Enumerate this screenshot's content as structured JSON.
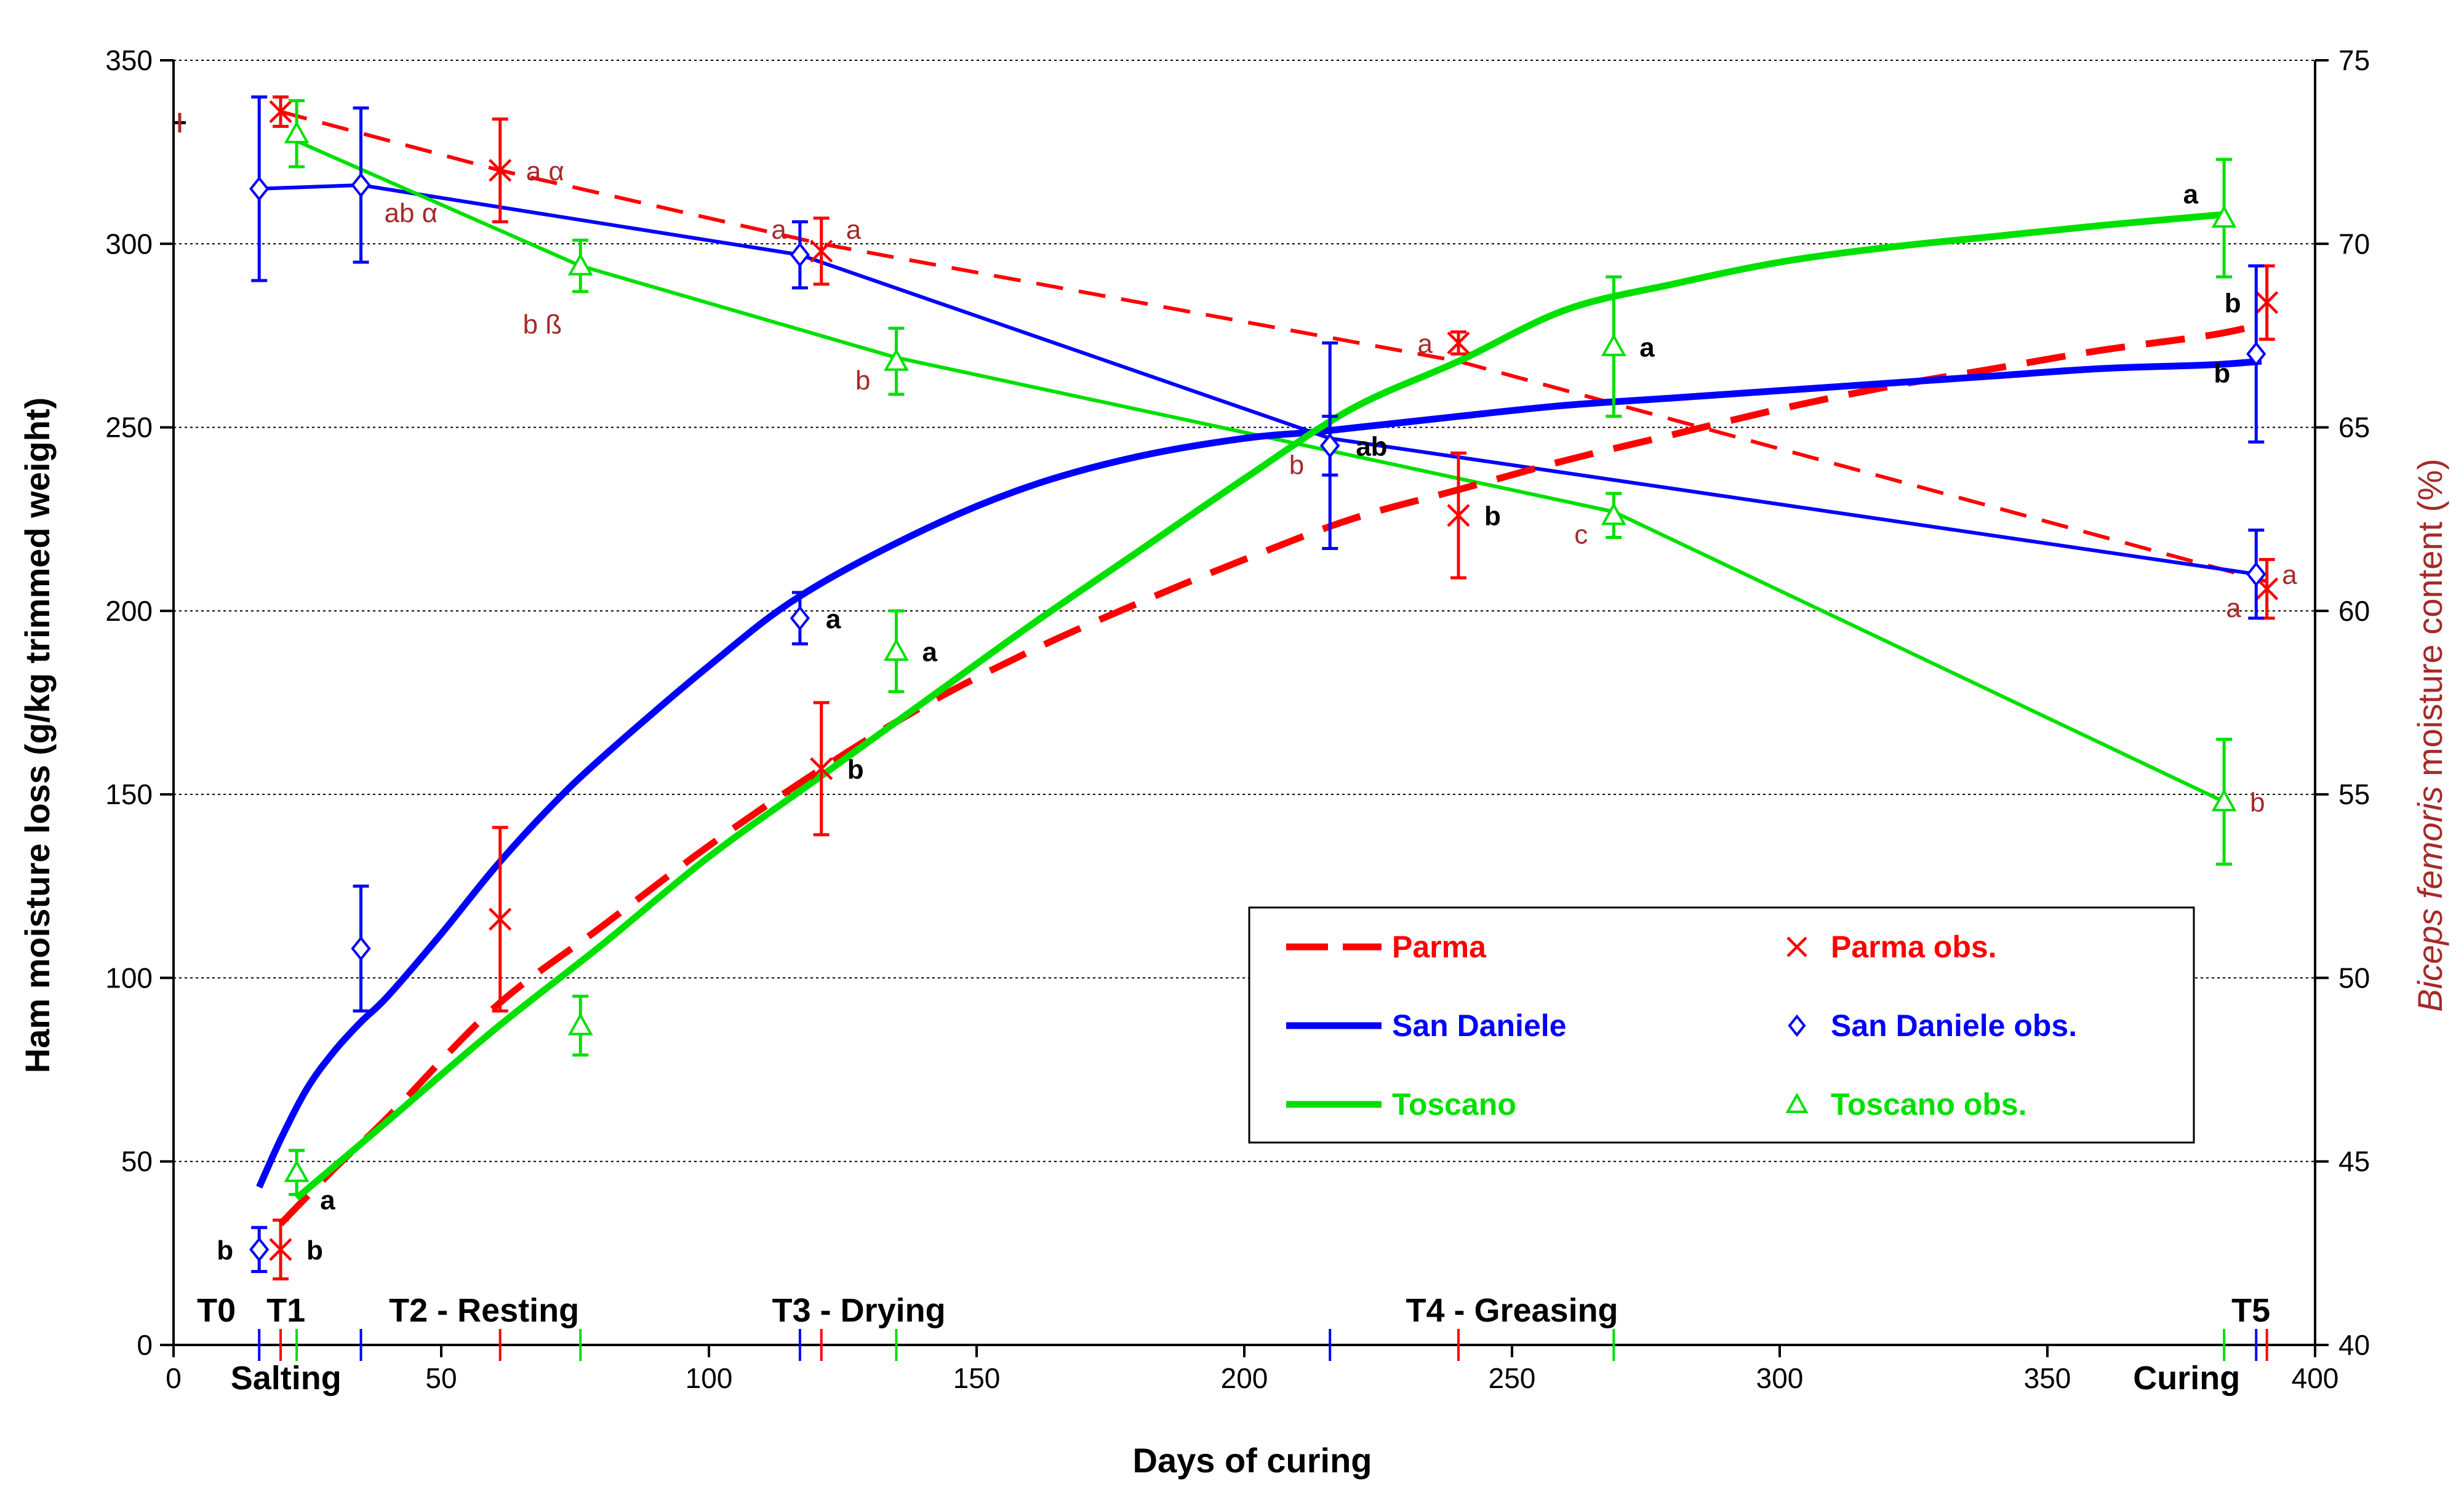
{
  "chart_data": {
    "type": "line",
    "title": "",
    "xlabel": "Days of curing",
    "ylabel": "Ham moisture loss (g/kg trimmed weight)",
    "ylabel_right_italic": "Biceps femoris",
    "ylabel_right_rest": " moisture content (%)",
    "xlim": [
      0,
      400
    ],
    "ylim": [
      0,
      350
    ],
    "ylim_right": [
      40,
      75
    ],
    "x_ticks": [
      "0",
      "50",
      "100",
      "150",
      "200",
      "250",
      "300",
      "350",
      "400"
    ],
    "x_tick_values": [
      0,
      50,
      100,
      150,
      200,
      250,
      300,
      350,
      400
    ],
    "y_ticks": [
      "0",
      "50",
      "100",
      "150",
      "200",
      "250",
      "300",
      "350"
    ],
    "y_tick_values": [
      0,
      50,
      100,
      150,
      200,
      250,
      300,
      350
    ],
    "y2_ticks": [
      "40",
      "45",
      "50",
      "55",
      "60",
      "65",
      "70",
      "75"
    ],
    "y2_tick_values": [
      40,
      45,
      50,
      55,
      60,
      65,
      70,
      75
    ],
    "grid": "horizontal dotted",
    "colors": {
      "parma": "#ff0000",
      "san_daniele": "#0000ff",
      "toscano": "#00e000",
      "dark_red": "#a52a2a",
      "text": "#000000"
    },
    "moisture_loss_fit": [
      {
        "name": "Parma",
        "color": "#ff0000",
        "style": "dashed",
        "x": [
          20,
          30,
          40,
          60,
          80,
          100,
          120,
          140,
          160,
          180,
          200,
          220,
          240,
          260,
          280,
          300,
          320,
          340,
          360,
          380,
          390
        ],
        "y": [
          33,
          48,
          62,
          92,
          114,
          136,
          156,
          174,
          189,
          202,
          214,
          225,
          233,
          241,
          248,
          255,
          261,
          266,
          271,
          275,
          278
        ]
      },
      {
        "name": "San Daniele",
        "color": "#0000ff",
        "style": "solid",
        "x": [
          16,
          20,
          25,
          30,
          35,
          40,
          50,
          60,
          70,
          80,
          100,
          117,
          140,
          160,
          180,
          200,
          215,
          240,
          260,
          280,
          300,
          320,
          340,
          360,
          380,
          390
        ],
        "y": [
          43,
          56,
          70,
          80,
          88,
          95,
          112,
          130,
          146,
          160,
          185,
          204,
          222,
          234,
          242,
          247,
          249,
          253,
          256,
          258,
          260,
          262,
          264,
          266,
          267,
          268
        ]
      },
      {
        "name": "Toscano",
        "color": "#00e000",
        "style": "solid",
        "x": [
          23,
          40,
          60,
          80,
          100,
          120,
          140,
          160,
          180,
          200,
          220,
          240,
          260,
          280,
          300,
          320,
          340,
          360,
          383
        ],
        "y": [
          40,
          61,
          86,
          109,
          133,
          154,
          175,
          196,
          216,
          236,
          255,
          268,
          282,
          289,
          295,
          299,
          302,
          305,
          308
        ]
      }
    ],
    "moisture_loss_obs": [
      {
        "name": "Parma obs.",
        "color": "#ff0000",
        "marker": "x",
        "points": [
          {
            "x": 20,
            "y": 26,
            "err": 8,
            "letter": "b",
            "side": "right"
          },
          {
            "x": 61,
            "y": 116,
            "err": 25
          },
          {
            "x": 121,
            "y": 157,
            "err": 18,
            "letter": "b",
            "side": "right"
          },
          {
            "x": 240,
            "y": 226,
            "err": 17,
            "letter": "b",
            "side": "right"
          },
          {
            "x": 391,
            "y": 284,
            "err": 10,
            "letter": "b",
            "side": "left"
          }
        ]
      },
      {
        "name": "San Daniele obs.",
        "color": "#0000ff",
        "marker": "diamond",
        "points": [
          {
            "x": 16,
            "y": 26,
            "err": 6,
            "letter": "b",
            "side": "left"
          },
          {
            "x": 35,
            "y": 108,
            "err": 17
          },
          {
            "x": 117,
            "y": 198,
            "err": 7,
            "letter": "a",
            "side": "right"
          },
          {
            "x": 216,
            "y": 245,
            "err": 8,
            "letter": "ab",
            "side": "right"
          },
          {
            "x": 389,
            "y": 270,
            "err": 24,
            "letter": "b",
            "side": "left-low"
          }
        ]
      },
      {
        "name": "Toscano obs.",
        "color": "#00e000",
        "marker": "triangle",
        "points": [
          {
            "x": 23,
            "y": 47,
            "err": 6,
            "letter": "a",
            "side": "right-low"
          },
          {
            "x": 76,
            "y": 87,
            "err": 8
          },
          {
            "x": 135,
            "y": 189,
            "err": 11,
            "letter": "a",
            "side": "right"
          },
          {
            "x": 269,
            "y": 272,
            "err": 19,
            "letter": "a",
            "side": "right"
          },
          {
            "x": 383,
            "y": 307,
            "err": 16,
            "letter": "a",
            "side": "left-high"
          }
        ]
      }
    ],
    "moisture_content_fit": [
      {
        "name": "Parma",
        "color": "#ff0000",
        "style": "dashed",
        "x": [
          20,
          61,
          121,
          240,
          391
        ],
        "y": [
          73.6,
          72.0,
          70.0,
          66.8,
          60.8
        ]
      },
      {
        "name": "San Daniele",
        "color": "#0000ff",
        "style": "solid",
        "x": [
          16,
          35,
          117,
          216,
          389
        ],
        "y": [
          71.5,
          71.6,
          69.7,
          64.7,
          61.0
        ]
      },
      {
        "name": "Toscano",
        "color": "#00e000",
        "style": "solid",
        "x": [
          23,
          76,
          135,
          269,
          383
        ],
        "y": [
          72.8,
          69.4,
          66.9,
          62.7,
          54.8
        ]
      }
    ],
    "moisture_content_obs": [
      {
        "name": "Parma obs.",
        "color": "#ff0000",
        "marker": "x",
        "points": [
          {
            "x": 20,
            "y": 73.6,
            "err": 0.4
          },
          {
            "x": 61,
            "y": 72.0,
            "err": 1.4,
            "letter": "a α",
            "side": "right"
          },
          {
            "x": 121,
            "y": 69.8,
            "err": 0.9,
            "letter": "a",
            "side": "right-up"
          },
          {
            "x": 240,
            "y": 67.3,
            "err": 0.3,
            "letter": "a",
            "side": "left"
          },
          {
            "x": 391,
            "y": 60.6,
            "err": 0.8,
            "letter": "a",
            "side": "left-low"
          }
        ]
      },
      {
        "name": "San Daniele obs.",
        "color": "#0000ff",
        "marker": "diamond",
        "points": [
          {
            "x": 16,
            "y": 71.5,
            "err": 2.5
          },
          {
            "x": 35,
            "y": 71.6,
            "err": 2.1,
            "letter": "ab α",
            "side": "right-low"
          },
          {
            "x": 117,
            "y": 69.7,
            "err": 0.9,
            "letter": "a",
            "side": "left-up"
          },
          {
            "x": 216,
            "y": 64.5,
            "err": 2.8,
            "letter": "b",
            "side": "left-low"
          },
          {
            "x": 389,
            "y": 61.0,
            "err": 1.2,
            "letter": "a",
            "side": "right"
          }
        ]
      },
      {
        "name": "Toscano obs.",
        "color": "#00e000",
        "marker": "triangle",
        "points": [
          {
            "x": 23,
            "y": 73.0,
            "err": 0.9
          },
          {
            "x": 76,
            "y": 69.4,
            "err": 0.7,
            "letter": "b ß",
            "side": "below-left"
          },
          {
            "x": 135,
            "y": 66.8,
            "err": 0.9,
            "letter": "b",
            "side": "left-low"
          },
          {
            "x": 269,
            "y": 62.6,
            "err": 0.6,
            "letter": "c",
            "side": "left-low"
          },
          {
            "x": 383,
            "y": 54.8,
            "err": 1.7,
            "letter": "b",
            "side": "right"
          }
        ]
      }
    ],
    "phase_labels": [
      {
        "text": "T0",
        "x": 8
      },
      {
        "text": "T1",
        "x": 21
      },
      {
        "text": "T2 - Resting",
        "x": 58
      },
      {
        "text": "T3 - Drying",
        "x": 128
      },
      {
        "text": "T4 - Greasing",
        "x": 250
      },
      {
        "text": "T5",
        "x": 388
      }
    ],
    "axis_extra_labels": [
      {
        "text": "Salting",
        "x": 21
      },
      {
        "text": "Curing",
        "x": 376
      }
    ],
    "phase_ticks": [
      {
        "x": 16,
        "color": "#0000ff"
      },
      {
        "x": 20,
        "color": "#ff0000"
      },
      {
        "x": 23,
        "color": "#00e000"
      },
      {
        "x": 35,
        "color": "#0000ff"
      },
      {
        "x": 61,
        "color": "#ff0000"
      },
      {
        "x": 76,
        "color": "#00e000"
      },
      {
        "x": 117,
        "color": "#0000ff"
      },
      {
        "x": 121,
        "color": "#ff0000"
      },
      {
        "x": 135,
        "color": "#00e000"
      },
      {
        "x": 216,
        "color": "#0000ff"
      },
      {
        "x": 240,
        "color": "#ff0000"
      },
      {
        "x": 269,
        "color": "#00e000"
      },
      {
        "x": 383,
        "color": "#00e000"
      },
      {
        "x": 389,
        "color": "#0000ff"
      },
      {
        "x": 391,
        "color": "#ff0000"
      }
    ],
    "initial_marker_y2": 73.3,
    "legend": {
      "position": "bottom-right",
      "entries": [
        {
          "label": "Parma",
          "color": "#ff0000",
          "kind": "line-dashed"
        },
        {
          "label": "Parma obs.",
          "color": "#ff0000",
          "kind": "x"
        },
        {
          "label": "San Daniele",
          "color": "#0000ff",
          "kind": "line"
        },
        {
          "label": "San Daniele obs.",
          "color": "#0000ff",
          "kind": "diamond"
        },
        {
          "label": "Toscano",
          "color": "#00e000",
          "kind": "line"
        },
        {
          "label": "Toscano obs.",
          "color": "#00e000",
          "kind": "triangle"
        }
      ]
    }
  }
}
